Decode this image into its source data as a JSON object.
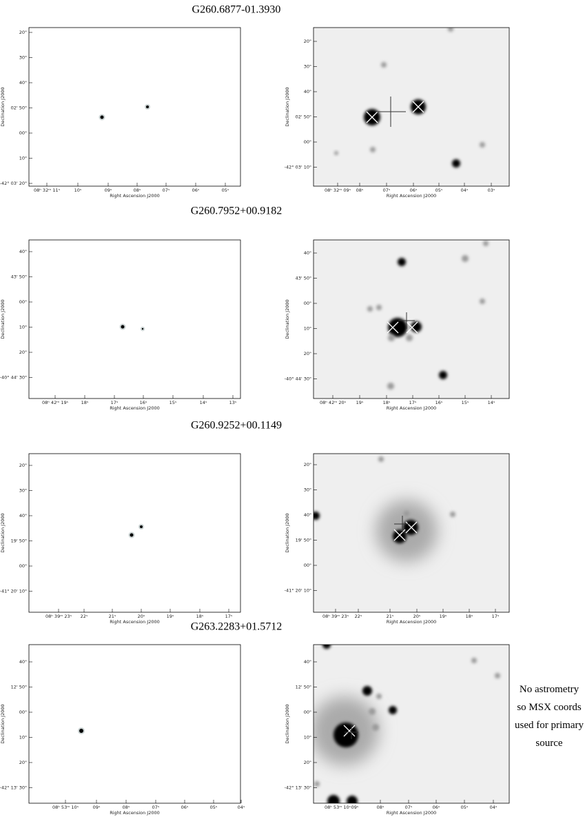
{
  "panels": [
    {
      "title": "G260.6877-01.3930",
      "left": {
        "yticks": [
          "20\"",
          "30\"",
          "40\"",
          "02' 50\"",
          "00\"",
          "10\"",
          "-42° 03' 20\""
        ],
        "xticks": [
          "08ʰ 32ᵐ 11ˢ",
          "10ˢ",
          "09ˢ",
          "08ˢ",
          "07ˢ",
          "06ˢ",
          "05ˢ"
        ],
        "xlabel": "Right Ascension J2000",
        "ylabel": "Declination J2000"
      },
      "right": {
        "yticks": [
          "20\"",
          "30\"",
          "40\"",
          "02' 50\"",
          "00\"",
          "-42° 03' 10\""
        ],
        "xticks": [
          "08ʰ 32ᵐ 09ˢ",
          "08ˢ",
          "07ˢ",
          "06ˢ",
          "05ˢ",
          "04ˢ",
          "03ˢ"
        ],
        "xlabel": "Right Ascension J2000",
        "ylabel": "Declination J2000"
      }
    },
    {
      "title": "G260.7952+00.9182",
      "left": {
        "yticks": [
          "40\"",
          "43' 50\"",
          "00\"",
          "10\"",
          "20\"",
          "-40° 44' 30\""
        ],
        "xticks": [
          "08ʰ 42ᵐ 19ˢ",
          "18ˢ",
          "17ˢ",
          "16ˢ",
          "15ˢ",
          "14ˢ",
          "13ˢ"
        ],
        "xlabel": "Right Ascension J2000",
        "ylabel": "Declination J2000"
      },
      "right": {
        "yticks": [
          "40\"",
          "43' 50\"",
          "00\"",
          "10\"",
          "20\"",
          "-40° 44' 30\""
        ],
        "xticks": [
          "08ʰ 42ᵐ 20ˢ",
          "19ˢ",
          "18ˢ",
          "17ˢ",
          "16ˢ",
          "15ˢ",
          "14ˢ"
        ],
        "xlabel": "Right Ascension J2000",
        "ylabel": "Declination J2000"
      }
    },
    {
      "title": "G260.9252+00.1149",
      "left": {
        "yticks": [
          "20\"",
          "30\"",
          "40\"",
          "19' 50\"",
          "00\"",
          "-41° 20' 10\""
        ],
        "xticks": [
          "08ʰ 39ᵐ 23ˢ",
          "22ˢ",
          "21ˢ",
          "20ˢ",
          "19ˢ",
          "18ˢ",
          "17ˢ"
        ],
        "xlabel": "Right Ascension J2000",
        "ylabel": "Declination J2000"
      },
      "right": {
        "yticks": [
          "20\"",
          "30\"",
          "40\"",
          "19' 50\"",
          "00\"",
          "-41° 20' 10\""
        ],
        "xticks": [
          "08ʰ 39ᵐ 23ˢ",
          "22ˢ",
          "21ˢ",
          "20ˢ",
          "19ˢ",
          "18ˢ",
          "17ˢ"
        ],
        "xlabel": "Right Ascension J2000",
        "ylabel": "Declination J2000"
      }
    },
    {
      "title": "G263.2283+01.5712",
      "left": {
        "yticks": [
          "40\"",
          "12' 50\"",
          "00\"",
          "10\"",
          "20\"",
          "-42° 13' 30\""
        ],
        "xticks": [
          "08ʰ 53ᵐ 10ˢ",
          "09ˢ",
          "08ˢ",
          "07ˢ",
          "06ˢ",
          "05ˢ",
          "04ˢ"
        ],
        "xlabel": "Right Ascension J2000",
        "ylabel": "Declination J2000"
      },
      "right": {
        "yticks": [
          "40\"",
          "12' 50\"",
          "00\"",
          "10\"",
          "20\"",
          "-42° 13' 30\""
        ],
        "xticks": [
          "08ʰ 53ᵐ 10ˢ",
          "09ˢ",
          "08ˢ",
          "07ˢ",
          "06ˢ",
          "05ˢ",
          "04ˢ"
        ],
        "xlabel": "Right Ascension J2000",
        "ylabel": "Declination J2000"
      }
    }
  ],
  "note": [
    "No astrometry",
    "so MSX coords",
    "used for primary",
    "source"
  ]
}
